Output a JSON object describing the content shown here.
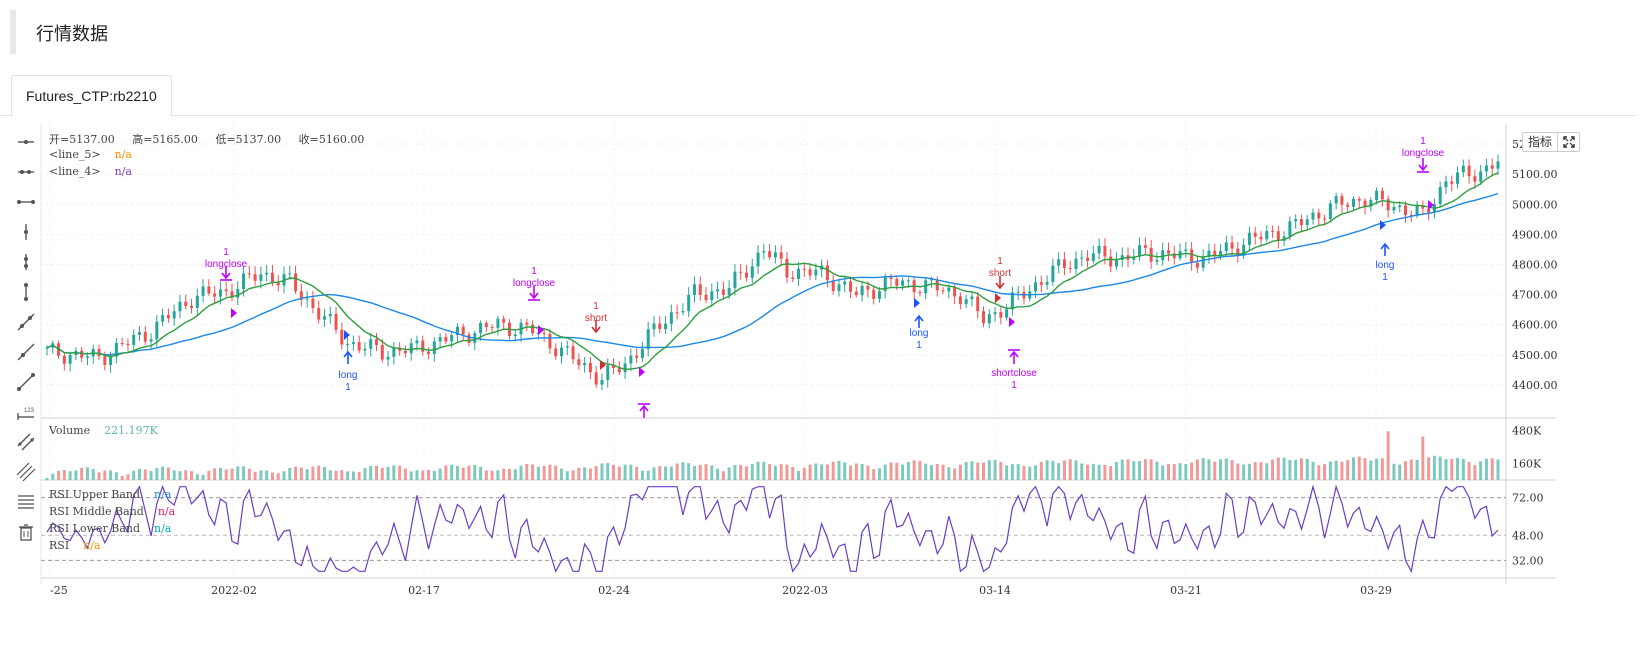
{
  "page": {
    "title": "行情数据"
  },
  "tabs": [
    {
      "label": "Futures_CTP:rb2210"
    }
  ],
  "toolbar": {
    "indicator_button": "指标"
  },
  "ohlc": {
    "open_label": "开=5137.00",
    "high_label": "高=5165.00",
    "low_label": "低=5137.00",
    "close_label": "收=5160.00"
  },
  "legends": {
    "line5": {
      "name": "<line_5>",
      "value": "n/a",
      "color": "#ff8c00"
    },
    "line4": {
      "name": "<line_4>",
      "value": "n/a",
      "color": "#7b3fbf"
    },
    "volume": {
      "name": "Volume",
      "value": "221.197K",
      "color": "#5bb5a5"
    },
    "rsi_upper": {
      "name": "RSI Upper Band",
      "value": "n/a",
      "color": "#1e88e5"
    },
    "rsi_middle": {
      "name": "RSI Middle Band",
      "value": "n/a",
      "color": "#e91e63"
    },
    "rsi_lower": {
      "name": "RSI Lower Band",
      "value": "n/a",
      "color": "#00acc1"
    },
    "rsi": {
      "name": "RSI",
      "value": "n/a",
      "color": "#ff9800"
    }
  },
  "price_axis": [
    "5200.00",
    "5100.00",
    "5000.00",
    "4900.00",
    "4800.00",
    "4700.00",
    "4600.00",
    "4500.00",
    "4400.00"
  ],
  "volume_axis": [
    "480K",
    "160K"
  ],
  "rsi_axis": [
    "72.00",
    "48.00",
    "32.00"
  ],
  "time_axis": [
    "-25",
    "2022-02",
    "02-17",
    "02-24",
    "2022-03",
    "03-14",
    "03-21",
    "03-29"
  ],
  "colors": {
    "up": "#26a69a",
    "down": "#ef5350",
    "ma_fast": "#2e9e3e",
    "ma_slow": "#1e88e5",
    "signal_long": "#1a53ff",
    "signal_short": "#d32f2f",
    "signal_close": "#c000ff",
    "rsi_line": "#6a3dc8"
  },
  "signals": [
    {
      "type": "longclose",
      "lines": [
        "1",
        "longclose"
      ],
      "color": "#c000ff",
      "dir": "down"
    },
    {
      "type": "long",
      "lines": [
        "long",
        "1"
      ],
      "color": "#1a53ff",
      "dir": "up"
    },
    {
      "type": "longclose",
      "lines": [
        "1",
        "longclose"
      ],
      "color": "#c000ff",
      "dir": "down"
    },
    {
      "type": "short",
      "lines": [
        "1",
        "short"
      ],
      "color": "#d32f2f",
      "dir": "down"
    },
    {
      "type": "shortclose",
      "lines": [],
      "color": "#c000ff",
      "dir": "up"
    },
    {
      "type": "long",
      "lines": [
        "long",
        "1"
      ],
      "color": "#1a53ff",
      "dir": "up"
    },
    {
      "type": "short",
      "lines": [
        "1",
        "short"
      ],
      "color": "#d32f2f",
      "dir": "down"
    },
    {
      "type": "shortclose",
      "lines": [
        "shortclose",
        "1"
      ],
      "color": "#c000ff",
      "dir": "up"
    },
    {
      "type": "long",
      "lines": [
        "long",
        "1"
      ],
      "color": "#1a53ff",
      "dir": "up"
    },
    {
      "type": "longclose",
      "lines": [
        "1",
        "longclose"
      ],
      "color": "#c000ff",
      "dir": "down"
    }
  ],
  "chart_data": {
    "type": "candlestick",
    "price_range": [
      4330,
      5240
    ],
    "rsi_range": [
      22,
      82
    ],
    "rsi_bands": [
      72,
      48,
      32
    ],
    "volume_range": [
      0,
      560000
    ],
    "x_labels": [
      "-25",
      "2022-02",
      "02-17",
      "02-24",
      "2022-03",
      "03-14",
      "03-21",
      "03-29"
    ]
  }
}
